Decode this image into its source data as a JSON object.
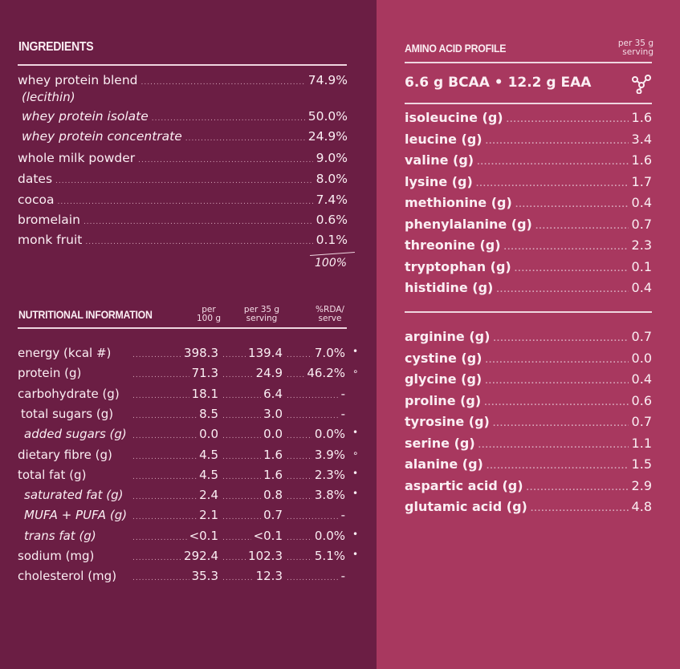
{
  "ingredients": {
    "title": "INGREDIENTS",
    "items": [
      {
        "label": "whey protein blend",
        "value": "74.9%"
      },
      {
        "label": "whey protein isolate",
        "value": "50.0%"
      },
      {
        "label": "whey protein concentrate",
        "value": "24.9%"
      },
      {
        "label": "whole milk powder",
        "value": "9.0%"
      },
      {
        "label": "dates",
        "value": "8.0%"
      },
      {
        "label": "cocoa",
        "value": "7.4%"
      },
      {
        "label": "bromelain",
        "value": "0.6%"
      },
      {
        "label": "monk fruit",
        "value": "0.1%"
      }
    ],
    "sub_note": "(lecithin)",
    "total": "100%"
  },
  "nutrition": {
    "title": "NUTRITIONAL INFORMATION",
    "col_per100": "per\n100 g",
    "col_serving": "per 35 g\nserving",
    "col_rda": "%RDA/\nserve",
    "rows": [
      {
        "label": "energy (kcal #)",
        "per100": "398.3",
        "serving": "139.4",
        "rda": "7.0%",
        "mark": "•"
      },
      {
        "label": "protein (g)",
        "per100": "71.3",
        "serving": "24.9",
        "rda": "46.2%",
        "mark": "∘"
      },
      {
        "label": "carbohydrate (g)",
        "per100": "18.1",
        "serving": "6.4",
        "rda": "-",
        "mark": ""
      },
      {
        "label": "total sugars (g)",
        "per100": "8.5",
        "serving": "3.0",
        "rda": "-",
        "mark": ""
      },
      {
        "label": "added sugars (g)",
        "per100": "0.0",
        "serving": "0.0",
        "rda": "0.0%",
        "mark": "•"
      },
      {
        "label": "dietary fibre (g)",
        "per100": "4.5",
        "serving": "1.6",
        "rda": "3.9%",
        "mark": "∘"
      },
      {
        "label": "total fat (g)",
        "per100": "4.5",
        "serving": "1.6",
        "rda": "2.3%",
        "mark": "•"
      },
      {
        "label": "saturated fat (g)",
        "per100": "2.4",
        "serving": "0.8",
        "rda": "3.8%",
        "mark": "•"
      },
      {
        "label": "MUFA + PUFA (g)",
        "per100": "2.1",
        "serving": "0.7",
        "rda": "-",
        "mark": ""
      },
      {
        "label": "trans fat (g)",
        "per100": "<0.1",
        "serving": "<0.1",
        "rda": "0.0%",
        "mark": "•"
      },
      {
        "label": "sodium (mg)",
        "per100": "292.4",
        "serving": "102.3",
        "rda": "5.1%",
        "mark": "•"
      },
      {
        "label": "cholesterol (mg)",
        "per100": "35.3",
        "serving": "12.3",
        "rda": "-",
        "mark": ""
      }
    ]
  },
  "amino": {
    "title": "AMINO ACID PROFILE",
    "serving_note": "per 35 g\nserving",
    "summary": "6.6 g BCAA • 12.2 g EAA",
    "icon": "molecule-icon",
    "essential": [
      {
        "label": "isoleucine (g)",
        "value": "1.6"
      },
      {
        "label": "leucine (g)",
        "value": "3.4"
      },
      {
        "label": "valine (g)",
        "value": "1.6"
      },
      {
        "label": "lysine (g)",
        "value": "1.7"
      },
      {
        "label": "methionine (g)",
        "value": "0.4"
      },
      {
        "label": "phenylalanine (g)",
        "value": "0.7"
      },
      {
        "label": "threonine (g)",
        "value": "2.3"
      },
      {
        "label": "tryptophan (g)",
        "value": "0.1"
      },
      {
        "label": "histidine (g)",
        "value": "0.4"
      }
    ],
    "nonessential": [
      {
        "label": "arginine (g)",
        "value": "0.7"
      },
      {
        "label": "cystine (g)",
        "value": "0.0"
      },
      {
        "label": "glycine (g)",
        "value": "0.4"
      },
      {
        "label": "proline (g)",
        "value": "0.6"
      },
      {
        "label": "tyrosine (g)",
        "value": "0.7"
      },
      {
        "label": "serine (g)",
        "value": "1.1"
      },
      {
        "label": "alanine (g)",
        "value": "1.5"
      },
      {
        "label": "aspartic acid (g)",
        "value": "2.9"
      },
      {
        "label": "glutamic acid (g)",
        "value": "4.8"
      }
    ]
  }
}
